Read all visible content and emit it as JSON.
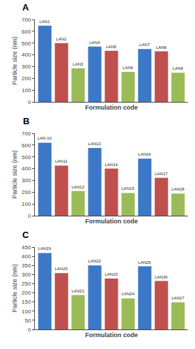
{
  "chart_data": [
    {
      "type": "bar",
      "title": "A",
      "x_label": "Formulation code",
      "y_label": "Particle size (nm)",
      "categories": [
        "LAN1",
        "LAN2",
        "LAN3",
        "LAN4",
        "LAN5",
        "LAN6",
        "LAN7",
        "LAN8",
        "LAN9"
      ],
      "values": [
        648,
        500,
        285,
        470,
        435,
        255,
        450,
        430,
        248
      ],
      "colors": [
        "#3C78C8",
        "#C0504D",
        "#9BBB59",
        "#3C78C8",
        "#C0504D",
        "#9BBB59",
        "#3C78C8",
        "#C0504D",
        "#9BBB59"
      ],
      "ylim": [
        0,
        700
      ],
      "yticks": [
        0,
        100,
        200,
        300,
        400,
        500,
        600,
        700
      ],
      "tick_labels": "y",
      "grid": false
    },
    {
      "type": "bar",
      "title": "B",
      "x_label": "Formulation code",
      "y_label": "Particle size (nm)",
      "categories": [
        "LAN 10",
        "LAN11",
        "LAN12",
        "LAN13",
        "LAN14",
        "LAN15",
        "LAN16",
        "LAN17",
        "LAN18"
      ],
      "values": [
        620,
        425,
        210,
        575,
        400,
        193,
        485,
        322,
        188
      ],
      "colors": [
        "#3C78C8",
        "#C0504D",
        "#9BBB59",
        "#3C78C8",
        "#C0504D",
        "#9BBB59",
        "#3C78C8",
        "#C0504D",
        "#9BBB59"
      ],
      "ylim": [
        0,
        700
      ],
      "yticks": [
        0,
        100,
        200,
        300,
        400,
        500,
        600,
        700
      ],
      "tick_labels": "y",
      "grid": false
    },
    {
      "type": "bar",
      "title": "C",
      "x_label": "Formulation code",
      "y_label": "Particle size (nm)",
      "categories": [
        "LAN19",
        "LAN20",
        "LAN21",
        "LAN22",
        "LAN23",
        "LAN24",
        "LAN25",
        "LAN26",
        "LAN27"
      ],
      "values": [
        418,
        308,
        188,
        350,
        278,
        170,
        345,
        265,
        148
      ],
      "colors": [
        "#3C78C8",
        "#C0504D",
        "#9BBB59",
        "#3C78C8",
        "#C0504D",
        "#9BBB59",
        "#3C78C8",
        "#C0504D",
        "#9BBB59"
      ],
      "ylim": [
        0,
        450
      ],
      "yticks": [
        0,
        50,
        100,
        150,
        200,
        250,
        300,
        350,
        400,
        450
      ],
      "tick_labels": "y",
      "grid": false
    }
  ]
}
